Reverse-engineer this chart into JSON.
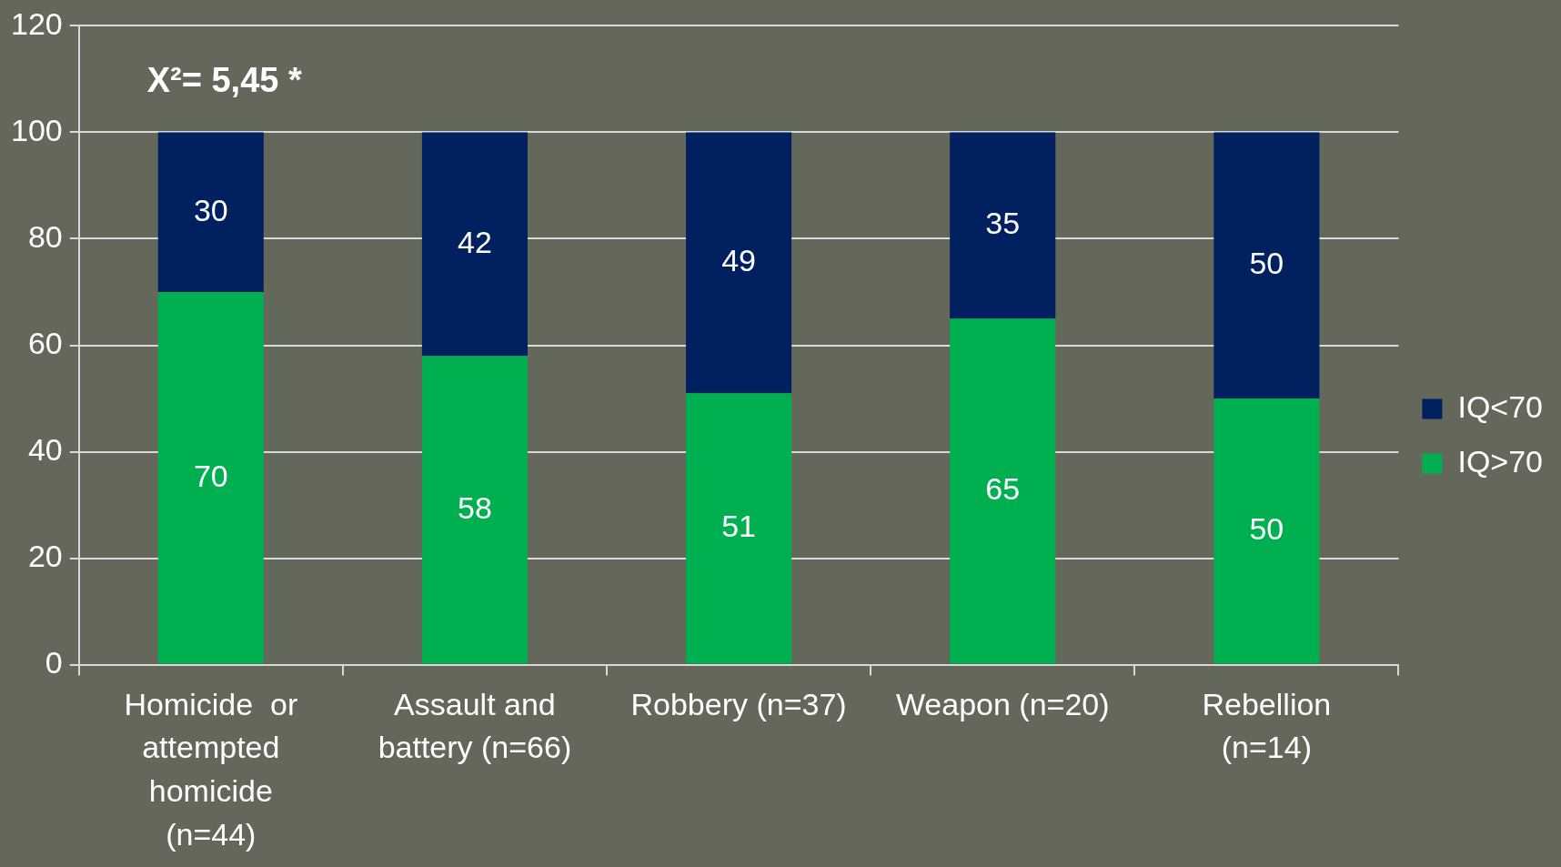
{
  "chart_data": {
    "type": "bar",
    "stacked": true,
    "data_labels": true,
    "grid": "y",
    "legend": "right",
    "categories": [
      "Homicide  or\nattempted\nhomicide\n(n=44)",
      "Assault and\nbattery (n=66)",
      "Robbery (n=37)",
      "Weapon (n=20)",
      "Rebellion\n(n=14)"
    ],
    "series": [
      {
        "name": "IQ>70",
        "color": "#00b050",
        "values": [
          70,
          58,
          51,
          65,
          50
        ]
      },
      {
        "name": "IQ<70",
        "color": "#002060",
        "values": [
          30,
          42,
          49,
          35,
          50
        ]
      }
    ],
    "ylim": [
      0,
      120
    ],
    "yticks": [
      0,
      20,
      40,
      60,
      80,
      100,
      120
    ],
    "annotations": [
      "X²= 5,45 *"
    ]
  }
}
